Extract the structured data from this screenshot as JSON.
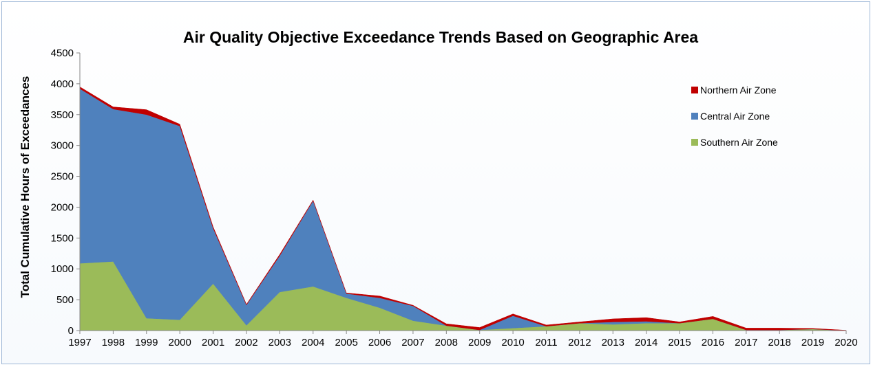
{
  "chart_data": {
    "type": "area",
    "stacked": true,
    "title": "Air Quality Objective Exceedance Trends Based on Geographic Area",
    "xlabel": "",
    "ylabel": "Total Cumulative Hours of Exceedances",
    "ylim": [
      0,
      4500
    ],
    "yticks": [
      0,
      500,
      1000,
      1500,
      2000,
      2500,
      3000,
      3500,
      4000,
      4500
    ],
    "categories": [
      "1997",
      "1998",
      "1999",
      "2000",
      "2001",
      "2002",
      "2003",
      "2004",
      "2005",
      "2006",
      "2007",
      "2008",
      "2009",
      "2010",
      "2011",
      "2012",
      "2013",
      "2014",
      "2015",
      "2016",
      "2017",
      "2018",
      "2019",
      "2020"
    ],
    "grid": false,
    "legend_position": "right",
    "series": [
      {
        "name": "Southern Air Zone",
        "color": "#9bbb59",
        "values": [
          1090,
          1120,
          200,
          175,
          760,
          85,
          625,
          715,
          530,
          370,
          160,
          80,
          10,
          40,
          70,
          120,
          100,
          120,
          120,
          190,
          10,
          10,
          25,
          0
        ]
      },
      {
        "name": "Central Air Zone",
        "color": "#4f81bd",
        "values": [
          2830,
          2470,
          3300,
          3140,
          900,
          330,
          590,
          1390,
          70,
          160,
          240,
          0,
          0,
          200,
          0,
          0,
          40,
          30,
          0,
          0,
          0,
          0,
          0,
          0
        ]
      },
      {
        "name": "Northern Air Zone",
        "color": "#c00000",
        "values": [
          30,
          35,
          80,
          30,
          20,
          10,
          20,
          10,
          10,
          30,
          10,
          30,
          40,
          30,
          20,
          20,
          50,
          60,
          20,
          40,
          30,
          30,
          10,
          5
        ]
      }
    ],
    "legend_order": [
      "Northern Air Zone",
      "Central Air Zone",
      "Southern Air Zone"
    ]
  }
}
